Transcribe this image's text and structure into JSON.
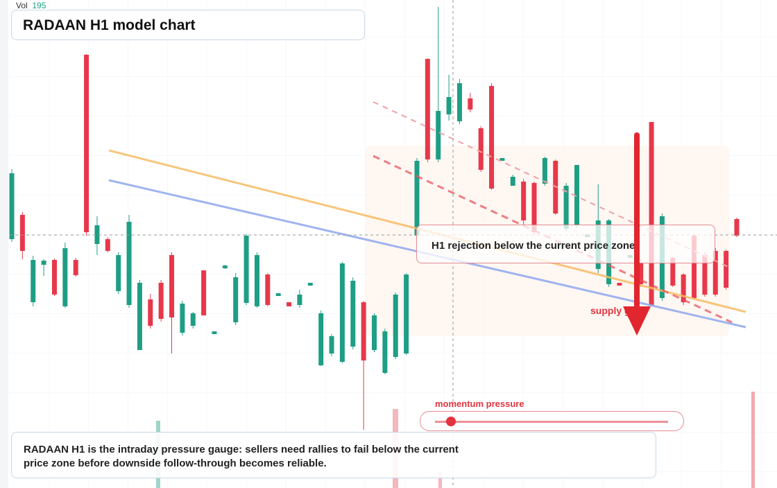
{
  "chart_data": {
    "type": "candlestick",
    "title": "RADAAN H1 model chart",
    "volume_label": "Vol",
    "volume_value": 195,
    "callout": "H1 rejection below the current price zone",
    "zone_label": "supply gate",
    "gauge_label": "momentum pressure",
    "note": "RADAAN H1 is the intraday pressure gauge: sellers need rallies to fail below the current price zone before downside follow-through becomes reliable.",
    "up_color": "#1e9e84",
    "down_color": "#e8374a",
    "ylim": [
      0,
      704
    ],
    "ohlc": [
      [
        359,
        460,
        355,
        454
      ],
      [
        394,
        398,
        330,
        342
      ],
      [
        268,
        335,
        262,
        329
      ],
      [
        322,
        330,
        306,
        328
      ],
      [
        329,
        331,
        277,
        279
      ],
      [
        262,
        354,
        260,
        346
      ],
      [
        329,
        332,
        305,
        307
      ],
      [
        625,
        626,
        364,
        369
      ],
      [
        352,
        392,
        336,
        379
      ],
      [
        359,
        362,
        340,
        342
      ],
      [
        284,
        340,
        280,
        336
      ],
      [
        264,
        394,
        260,
        384
      ],
      [
        199,
        300,
        199,
        296
      ],
      [
        272,
        280,
        230,
        234
      ],
      [
        296,
        300,
        240,
        244
      ],
      [
        336,
        340,
        194,
        246
      ],
      [
        224,
        270,
        220,
        266
      ],
      [
        234,
        254,
        230,
        252
      ],
      [
        314,
        314,
        249,
        249
      ],
      [
        222,
        226,
        222,
        226
      ],
      [
        317,
        322,
        316,
        321
      ],
      [
        239,
        310,
        235,
        304
      ],
      [
        267,
        366,
        264,
        364
      ],
      [
        262,
        340,
        260,
        336
      ],
      [
        308,
        310,
        262,
        264
      ],
      [
        277,
        281,
        277,
        281
      ],
      [
        268,
        268,
        262,
        262
      ],
      [
        264,
        286,
        260,
        279
      ],
      [
        292,
        296,
        292,
        296
      ],
      [
        177,
        256,
        176,
        252
      ],
      [
        194,
        222,
        190,
        219
      ],
      [
        182,
        326,
        180,
        324
      ],
      [
        204,
        304,
        200,
        299
      ],
      [
        268,
        270,
        84,
        184
      ],
      [
        199,
        252,
        196,
        249
      ],
      [
        166,
        230,
        164,
        226
      ],
      [
        189,
        282,
        186,
        279
      ],
      [
        194,
        310,
        192,
        308
      ],
      [
        364,
        476,
        360,
        472
      ],
      [
        619,
        620,
        470,
        474
      ],
      [
        474,
        694,
        470,
        544
      ],
      [
        539,
        596,
        530,
        564
      ],
      [
        529,
        590,
        525,
        584
      ],
      [
        562,
        570,
        542,
        546
      ],
      [
        519,
        522,
        456,
        459
      ],
      [
        580,
        584,
        430,
        432
      ],
      [
        472,
        476,
        472,
        476
      ],
      [
        436,
        452,
        436,
        449
      ],
      [
        442,
        446,
        380,
        386
      ],
      [
        440,
        442,
        366,
        369
      ],
      [
        439,
        478,
        436,
        476
      ],
      [
        472,
        474,
        394,
        396
      ],
      [
        374,
        440,
        370,
        436
      ],
      [
        379,
        466,
        376,
        466
      ],
      [
        362,
        366,
        362,
        366
      ],
      [
        316,
        438,
        310,
        386
      ],
      [
        294,
        388,
        290,
        386
      ],
      [
        296,
        296,
        292,
        292
      ],
      [
        332,
        336,
        332,
        336
      ],
      [
        324,
        330,
        290,
        294
      ],
      [
        528,
        528,
        262,
        264
      ],
      [
        274,
        396,
        270,
        392
      ],
      [
        332,
        334,
        290,
        292
      ],
      [
        308,
        310,
        264,
        268
      ],
      [
        364,
        366,
        272,
        274
      ],
      [
        336,
        340,
        276,
        279
      ],
      [
        342,
        346,
        276,
        279
      ],
      [
        342,
        344,
        286,
        289
      ],
      [
        388,
        390,
        362,
        364
      ]
    ]
  }
}
